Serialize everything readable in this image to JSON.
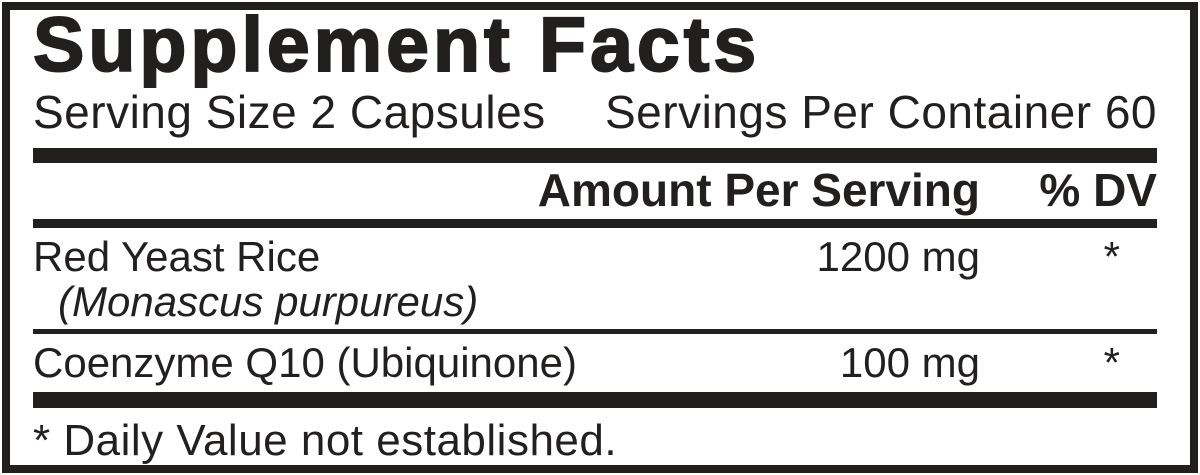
{
  "label": {
    "title": "Supplement Facts",
    "serving_size": "Serving Size 2 Capsules",
    "servings_per_container": "Servings Per Container 60",
    "header": {
      "amount": "Amount Per Serving",
      "dv": "% DV"
    },
    "rows": [
      {
        "name": "Red Yeast Rice",
        "latin": "(Monascus purpureus)",
        "amount": "1200 mg",
        "dv": "*"
      },
      {
        "name": "Coenzyme Q10 (Ubiquinone)",
        "amount": "100 mg",
        "dv": "*"
      }
    ],
    "footnote": "* Daily Value not established.",
    "colors": {
      "ink": "#221f1f",
      "background": "#ffffff"
    }
  }
}
